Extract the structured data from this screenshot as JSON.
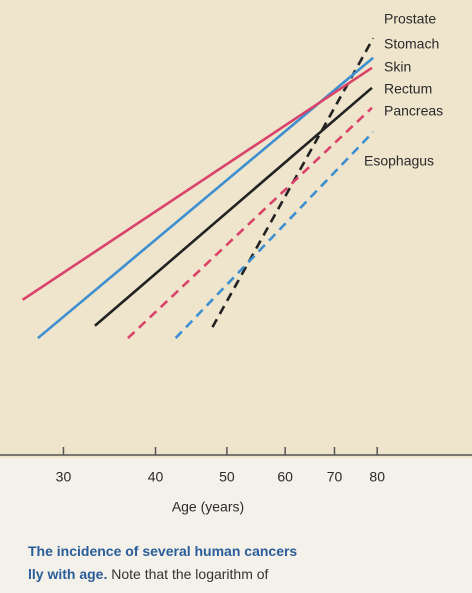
{
  "chart_data": {
    "type": "line",
    "x_scale": "log",
    "xlabel": "Age (years)",
    "xlim": [
      24.6,
      107.6
    ],
    "xticks": [
      30,
      40,
      50,
      60,
      70,
      80
    ],
    "ylim": [
      0,
      100
    ],
    "series": [
      {
        "name": "Prostate",
        "color": "#222222",
        "style": "dashed",
        "x": [
          47.8,
          79
        ],
        "values": [
          28.1,
          91.6
        ]
      },
      {
        "name": "Stomach",
        "color": "#3d8fd0",
        "style": "solid",
        "x": [
          27.7,
          79
        ],
        "values": [
          25.7,
          87.3
        ]
      },
      {
        "name": "Skin",
        "color": "#d9436a",
        "style": "solid",
        "x": [
          26.4,
          78.7
        ],
        "values": [
          34.1,
          85.1
        ]
      },
      {
        "name": "Rectum",
        "color": "#222222",
        "style": "solid",
        "x": [
          33.1,
          78.7
        ],
        "values": [
          28.4,
          80.7
        ]
      },
      {
        "name": "Pancreas",
        "color": "#d9436a",
        "style": "dashed",
        "x": [
          36.7,
          78.7
        ],
        "values": [
          25.7,
          76.3
        ]
      },
      {
        "name": "Esophagus",
        "color": "#3d8fd0",
        "style": "dashed",
        "x": [
          42.6,
          79
        ],
        "values": [
          25.7,
          71.0
        ]
      }
    ]
  },
  "caption": {
    "bold_1": "The incidence of several human cancers",
    "bold_2": "lly with age.",
    "text_2": " Note that the logarithm of"
  }
}
